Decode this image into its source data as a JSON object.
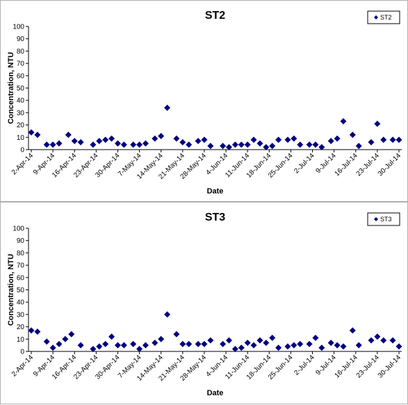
{
  "chart_data": [
    {
      "type": "scatter",
      "title": "ST2",
      "xlabel": "Date",
      "ylabel": "Concentration, NTU",
      "ylim": [
        0,
        100
      ],
      "yticks": [
        0,
        10,
        20,
        30,
        40,
        50,
        60,
        70,
        80,
        90,
        100
      ],
      "xlim": [
        "2014-04-02",
        "2014-07-30"
      ],
      "xtick_labels": [
        "2-Apr-14",
        "9-Apr-14",
        "16-Apr-14",
        "23-Apr-14",
        "30-Apr-14",
        "7-May-14",
        "14-May-14",
        "21-May-14",
        "28-May-14",
        "4-Jun-14",
        "11-Jun-14",
        "18-Jun-14",
        "25-Jun-14",
        "2-Jul-14",
        "9-Jul-14",
        "16-Jul-14",
        "23-Jul-14",
        "30-Jul-14"
      ],
      "grid": false,
      "legend": {
        "position": "top-right",
        "entries": [
          "ST2"
        ]
      },
      "marker_color": "#000080",
      "series": [
        {
          "name": "ST2",
          "x": [
            "2014-04-02",
            "2014-04-04",
            "2014-04-07",
            "2014-04-09",
            "2014-04-11",
            "2014-04-14",
            "2014-04-16",
            "2014-04-18",
            "2014-04-22",
            "2014-04-24",
            "2014-04-26",
            "2014-04-28",
            "2014-04-30",
            "2014-05-02",
            "2014-05-05",
            "2014-05-07",
            "2014-05-09",
            "2014-05-12",
            "2014-05-14",
            "2014-05-16",
            "2014-05-19",
            "2014-05-21",
            "2014-05-23",
            "2014-05-26",
            "2014-05-28",
            "2014-05-30",
            "2014-06-03",
            "2014-06-05",
            "2014-06-07",
            "2014-06-09",
            "2014-06-11",
            "2014-06-13",
            "2014-06-15",
            "2014-06-17",
            "2014-06-19",
            "2014-06-21",
            "2014-06-24",
            "2014-06-26",
            "2014-06-28",
            "2014-07-01",
            "2014-07-03",
            "2014-07-05",
            "2014-07-08",
            "2014-07-10",
            "2014-07-12",
            "2014-07-15",
            "2014-07-17",
            "2014-07-21",
            "2014-07-23",
            "2014-07-25",
            "2014-07-28",
            "2014-07-30"
          ],
          "y": [
            14,
            12,
            4,
            4,
            5,
            12,
            7,
            6,
            4,
            7,
            8,
            9,
            5,
            4,
            4,
            4,
            5,
            9,
            11,
            34,
            9,
            6,
            4,
            7,
            8,
            3,
            3,
            2,
            4,
            4,
            4,
            8,
            5,
            2,
            3,
            8,
            8,
            9,
            4,
            4,
            4,
            2,
            7,
            9,
            23,
            12,
            3,
            6,
            21,
            8,
            8,
            8
          ]
        }
      ]
    },
    {
      "type": "scatter",
      "title": "ST3",
      "xlabel": "Date",
      "ylabel": "Concentration, NTU",
      "ylim": [
        0,
        100
      ],
      "yticks": [
        0,
        10,
        20,
        30,
        40,
        50,
        60,
        70,
        80,
        90,
        100
      ],
      "xlim": [
        "2014-04-02",
        "2014-07-30"
      ],
      "xtick_labels": [
        "2-Apr-14",
        "9-Apr-14",
        "16-Apr-14",
        "23-Apr-14",
        "30-Apr-14",
        "7-May-14",
        "14-May-14",
        "21-May-14",
        "28-May-14",
        "4-Jun-14",
        "11-Jun-14",
        "18-Jun-14",
        "25-Jun-14",
        "2-Jul-14",
        "9-Jul-14",
        "16-Jul-14",
        "23-Jul-14",
        "30-Jul-14"
      ],
      "grid": false,
      "legend": {
        "position": "top-right",
        "entries": [
          "ST3"
        ]
      },
      "marker_color": "#000080",
      "series": [
        {
          "name": "ST3",
          "x": [
            "2014-04-02",
            "2014-04-04",
            "2014-04-07",
            "2014-04-09",
            "2014-04-11",
            "2014-04-13",
            "2014-04-15",
            "2014-04-18",
            "2014-04-22",
            "2014-04-24",
            "2014-04-26",
            "2014-04-28",
            "2014-04-30",
            "2014-05-02",
            "2014-05-05",
            "2014-05-07",
            "2014-05-09",
            "2014-05-12",
            "2014-05-14",
            "2014-05-16",
            "2014-05-19",
            "2014-05-21",
            "2014-05-23",
            "2014-05-26",
            "2014-05-28",
            "2014-05-30",
            "2014-06-03",
            "2014-06-05",
            "2014-06-07",
            "2014-06-09",
            "2014-06-11",
            "2014-06-13",
            "2014-06-15",
            "2014-06-17",
            "2014-06-19",
            "2014-06-21",
            "2014-06-24",
            "2014-06-26",
            "2014-06-28",
            "2014-07-01",
            "2014-07-03",
            "2014-07-05",
            "2014-07-08",
            "2014-07-10",
            "2014-07-12",
            "2014-07-15",
            "2014-07-17",
            "2014-07-21",
            "2014-07-23",
            "2014-07-25",
            "2014-07-28",
            "2014-07-30"
          ],
          "y": [
            17,
            16,
            8,
            3,
            6,
            10,
            14,
            5,
            2,
            4,
            6,
            12,
            5,
            5,
            6,
            2,
            5,
            7,
            10,
            30,
            14,
            6,
            6,
            6,
            6,
            9,
            6,
            9,
            2,
            3,
            7,
            5,
            9,
            7,
            11,
            3,
            4,
            5,
            6,
            6,
            11,
            3,
            7,
            5,
            4,
            17,
            5,
            9,
            12,
            9,
            9,
            4
          ]
        }
      ]
    }
  ]
}
